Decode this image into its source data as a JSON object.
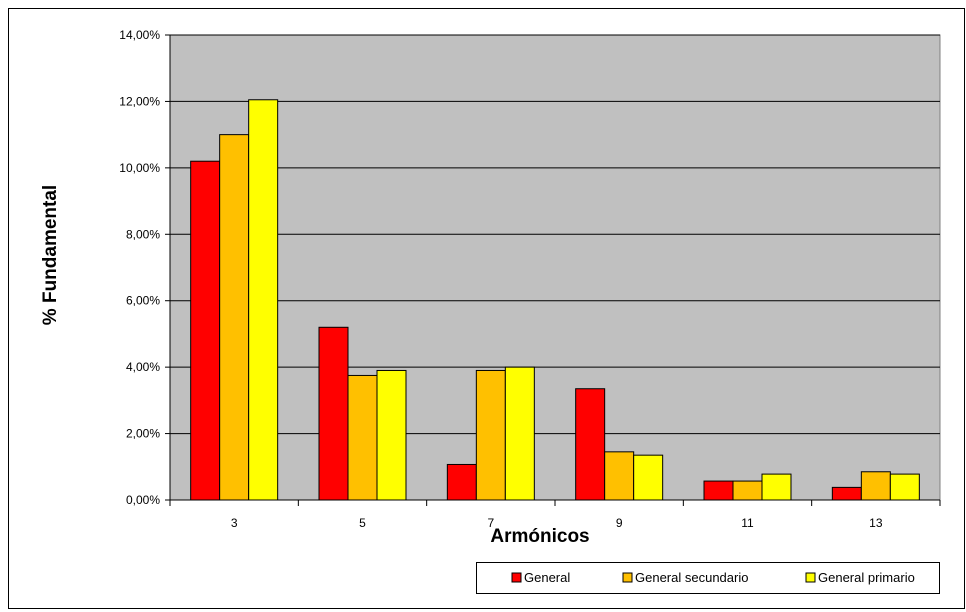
{
  "chart_data": {
    "type": "bar",
    "title": "",
    "xlabel": "Armónicos",
    "ylabel": "% Fundamental",
    "categories": [
      "3",
      "5",
      "7",
      "9",
      "11",
      "13"
    ],
    "series": [
      {
        "name": "General",
        "color": "#ff0000",
        "values": [
          10.2,
          5.2,
          1.07,
          3.35,
          0.57,
          0.38
        ]
      },
      {
        "name": "General secundario",
        "color": "#ffc000",
        "values": [
          11.0,
          3.75,
          3.9,
          1.45,
          0.57,
          0.85
        ]
      },
      {
        "name": "General primario",
        "color": "#ffff00",
        "values": [
          12.05,
          3.9,
          4.0,
          1.35,
          0.78,
          0.78
        ]
      }
    ],
    "ylim": [
      0,
      14
    ],
    "yticks": [
      "0,00%",
      "2,00%",
      "4,00%",
      "6,00%",
      "8,00%",
      "10,00%",
      "12,00%",
      "14,00%"
    ],
    "plot_background": "#c0c0c0",
    "grid": true,
    "legend_position": "bottom-right"
  }
}
